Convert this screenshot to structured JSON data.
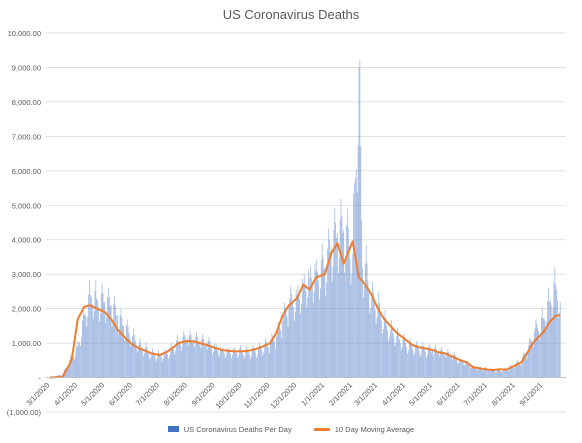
{
  "chart_data": {
    "type": "bar",
    "title": "US Coronavirus Deaths",
    "ylim": [
      -1000,
      10000
    ],
    "y_ticks": [
      {
        "value": 10000,
        "label": "10,000.00"
      },
      {
        "value": 9000,
        "label": "9,000.00"
      },
      {
        "value": 8000,
        "label": "8,000.00"
      },
      {
        "value": 7000,
        "label": "7,000.00"
      },
      {
        "value": 6000,
        "label": "6,000.00"
      },
      {
        "value": 5000,
        "label": "5,000.00"
      },
      {
        "value": 4000,
        "label": "4,000.00"
      },
      {
        "value": 3000,
        "label": "3,000.00"
      },
      {
        "value": 2000,
        "label": "2,000.00"
      },
      {
        "value": 1000,
        "label": "1,000.00"
      },
      {
        "value": 0,
        "label": "-"
      },
      {
        "value": -1000,
        "label": "(1,000.00)"
      }
    ],
    "x_ticks": [
      "3/1/2020",
      "4/1/2020",
      "5/1/2020",
      "6/1/2020",
      "7/1/2020",
      "8/1/2020",
      "9/1/2020",
      "10/1/2020",
      "11/1/2020",
      "12/1/2020",
      "1/1/2021",
      "2/1/2021",
      "3/1/2021",
      "4/1/2021",
      "5/1/2021",
      "6/1/2021",
      "7/1/2021",
      "8/1/2021",
      "9/1/2021"
    ],
    "grid": true,
    "legend_position": "bottom",
    "series": [
      {
        "name": "US Coronavirus Deaths Per Day",
        "type": "bar",
        "color": "#4472C4",
        "x": [
          "3/1/2020",
          "3/15/2020",
          "4/1/2020",
          "4/8/2020",
          "4/15/2020",
          "4/22/2020",
          "5/1/2020",
          "5/8/2020",
          "5/15/2020",
          "5/22/2020",
          "6/1/2020",
          "6/8/2020",
          "6/15/2020",
          "6/22/2020",
          "7/1/2020",
          "7/8/2020",
          "7/15/2020",
          "7/22/2020",
          "8/1/2020",
          "8/8/2020",
          "8/15/2020",
          "8/22/2020",
          "9/1/2020",
          "9/8/2020",
          "9/15/2020",
          "9/22/2020",
          "10/1/2020",
          "10/8/2020",
          "10/15/2020",
          "10/22/2020",
          "11/1/2020",
          "11/8/2020",
          "11/15/2020",
          "11/22/2020",
          "12/1/2020",
          "12/8/2020",
          "12/15/2020",
          "12/22/2020",
          "1/1/2021",
          "1/8/2021",
          "1/15/2021",
          "1/22/2021",
          "2/1/2021",
          "2/8/2021",
          "2/12/2021",
          "2/15/2021",
          "2/22/2021",
          "3/1/2021",
          "3/8/2021",
          "3/15/2021",
          "3/22/2021",
          "4/1/2021",
          "4/8/2021",
          "4/15/2021",
          "4/22/2021",
          "5/1/2021",
          "5/8/2021",
          "5/15/2021",
          "5/22/2021",
          "6/1/2021",
          "6/8/2021",
          "6/15/2021",
          "6/22/2021",
          "7/1/2021",
          "7/8/2021",
          "7/15/2021",
          "7/22/2021",
          "8/1/2021",
          "8/8/2021",
          "8/15/2021",
          "8/22/2021",
          "9/1/2021",
          "9/8/2021",
          "9/15/2021",
          "9/20/2021"
        ],
        "values": [
          5,
          90,
          900,
          1800,
          2400,
          2300,
          2200,
          2100,
          1800,
          1500,
          1200,
          950,
          850,
          700,
          650,
          700,
          850,
          1050,
          1150,
          1100,
          1050,
          1000,
          900,
          800,
          780,
          800,
          760,
          750,
          790,
          850,
          1000,
          1200,
          1650,
          2100,
          2400,
          2700,
          2900,
          3100,
          3200,
          3800,
          4200,
          4300,
          3600,
          9000,
          3200,
          3300,
          2300,
          2100,
          1650,
          1400,
          1200,
          1000,
          900,
          850,
          830,
          800,
          750,
          700,
          650,
          500,
          450,
          320,
          290,
          250,
          220,
          200,
          240,
          380,
          500,
          800,
          1300,
          1700,
          2200,
          2700,
          2200
        ]
      },
      {
        "name": "10 Day Moving Average",
        "type": "line",
        "color": "#ED7D31",
        "x": [
          "3/1/2020",
          "3/15/2020",
          "3/25/2020",
          "4/1/2020",
          "4/8/2020",
          "4/15/2020",
          "4/22/2020",
          "5/1/2020",
          "5/8/2020",
          "5/15/2020",
          "5/22/2020",
          "6/1/2020",
          "6/8/2020",
          "6/15/2020",
          "6/22/2020",
          "7/1/2020",
          "7/8/2020",
          "7/15/2020",
          "7/22/2020",
          "8/1/2020",
          "8/8/2020",
          "8/15/2020",
          "8/22/2020",
          "9/1/2020",
          "9/8/2020",
          "9/15/2020",
          "9/22/2020",
          "10/1/2020",
          "10/8/2020",
          "10/15/2020",
          "10/22/2020",
          "11/1/2020",
          "11/8/2020",
          "11/15/2020",
          "11/22/2020",
          "12/1/2020",
          "12/8/2020",
          "12/15/2020",
          "12/22/2020",
          "1/1/2021",
          "1/8/2021",
          "1/15/2021",
          "1/22/2021",
          "2/1/2021",
          "2/8/2021",
          "2/15/2021",
          "2/22/2021",
          "3/1/2021",
          "3/8/2021",
          "3/15/2021",
          "3/22/2021",
          "4/1/2021",
          "4/8/2021",
          "4/15/2021",
          "4/22/2021",
          "5/1/2021",
          "5/8/2021",
          "5/15/2021",
          "5/22/2021",
          "6/1/2021",
          "6/8/2021",
          "6/15/2021",
          "6/22/2021",
          "7/1/2021",
          "7/8/2021",
          "7/15/2021",
          "7/22/2021",
          "8/1/2021",
          "8/8/2021",
          "8/15/2021",
          "8/22/2021",
          "9/1/2021",
          "9/8/2021",
          "9/15/2021",
          "9/20/2021"
        ],
        "values": [
          0,
          20,
          500,
          1700,
          2050,
          2100,
          2000,
          1900,
          1700,
          1400,
          1200,
          950,
          850,
          780,
          700,
          650,
          730,
          850,
          1000,
          1060,
          1050,
          1000,
          950,
          860,
          800,
          780,
          760,
          760,
          780,
          820,
          880,
          1000,
          1300,
          1800,
          2100,
          2300,
          2700,
          2550,
          2900,
          3000,
          3600,
          3900,
          3300,
          3950,
          2900,
          2700,
          2400,
          2000,
          1700,
          1500,
          1300,
          1100,
          950,
          880,
          850,
          800,
          730,
          700,
          620,
          500,
          440,
          300,
          270,
          230,
          220,
          240,
          230,
          350,
          450,
          750,
          1050,
          1300,
          1600,
          1800,
          1800
        ]
      }
    ]
  }
}
